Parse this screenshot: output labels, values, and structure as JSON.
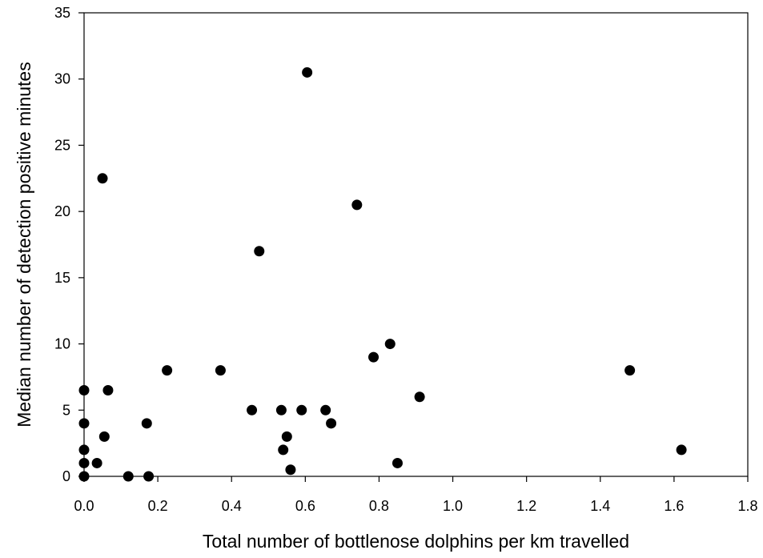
{
  "chart_data": {
    "type": "scatter",
    "title": "",
    "xlabel": "Total number of bottlenose dolphins per km travelled",
    "ylabel": "Median number of detection positive minutes",
    "xlim": [
      0,
      1.8
    ],
    "ylim": [
      0,
      35
    ],
    "x_ticks": [
      "0.0",
      "0.2",
      "0.4",
      "0.6",
      "0.8",
      "1.0",
      "1.2",
      "1.4",
      "1.6",
      "1.8"
    ],
    "y_ticks": [
      "0",
      "5",
      "10",
      "15",
      "20",
      "25",
      "30",
      "35"
    ],
    "grid": false,
    "legend": "none",
    "marker_color": "#000000",
    "points": [
      {
        "x": 0.0,
        "y": 0.0
      },
      {
        "x": 0.0,
        "y": 1.0
      },
      {
        "x": 0.0,
        "y": 2.0
      },
      {
        "x": 0.0,
        "y": 4.0
      },
      {
        "x": 0.0,
        "y": 6.5
      },
      {
        "x": 0.035,
        "y": 1.0
      },
      {
        "x": 0.05,
        "y": 22.5
      },
      {
        "x": 0.055,
        "y": 3.0
      },
      {
        "x": 0.065,
        "y": 6.5
      },
      {
        "x": 0.12,
        "y": 0.0
      },
      {
        "x": 0.17,
        "y": 4.0
      },
      {
        "x": 0.175,
        "y": 0.0
      },
      {
        "x": 0.225,
        "y": 8.0
      },
      {
        "x": 0.37,
        "y": 8.0
      },
      {
        "x": 0.455,
        "y": 5.0
      },
      {
        "x": 0.475,
        "y": 17.0
      },
      {
        "x": 0.535,
        "y": 5.0
      },
      {
        "x": 0.54,
        "y": 2.0
      },
      {
        "x": 0.55,
        "y": 3.0
      },
      {
        "x": 0.56,
        "y": 0.5
      },
      {
        "x": 0.59,
        "y": 5.0
      },
      {
        "x": 0.605,
        "y": 30.5
      },
      {
        "x": 0.655,
        "y": 5.0
      },
      {
        "x": 0.67,
        "y": 4.0
      },
      {
        "x": 0.74,
        "y": 20.5
      },
      {
        "x": 0.785,
        "y": 9.0
      },
      {
        "x": 0.83,
        "y": 10.0
      },
      {
        "x": 0.85,
        "y": 1.0
      },
      {
        "x": 0.91,
        "y": 6.0
      },
      {
        "x": 1.48,
        "y": 8.0
      },
      {
        "x": 1.62,
        "y": 2.0
      }
    ]
  }
}
